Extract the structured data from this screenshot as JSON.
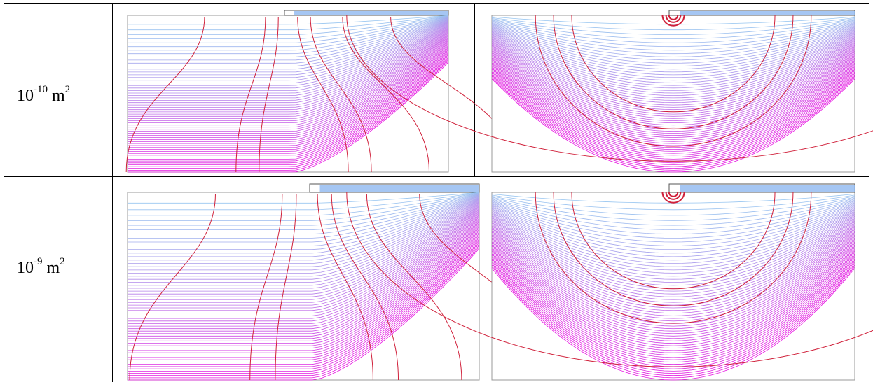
{
  "table": {
    "rows": [
      {
        "label": {
          "base": "10",
          "exponent": "-10",
          "unit": "m",
          "unit_exponent": "2"
        }
      },
      {
        "label": {
          "base": "10",
          "exponent": "-9",
          "unit": "m",
          "unit_exponent": "2"
        }
      }
    ]
  }
}
